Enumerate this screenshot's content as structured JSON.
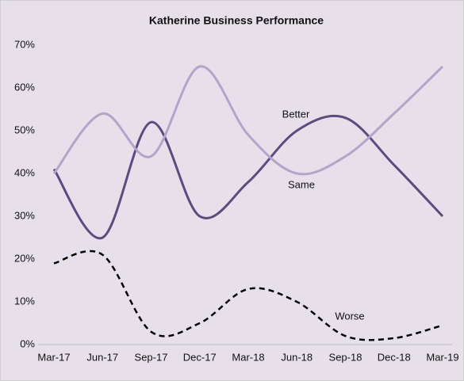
{
  "chart_data": {
    "type": "line",
    "title": "Katherine Business Performance",
    "categories": [
      "Mar-17",
      "Jun-17",
      "Sep-17",
      "Dec-17",
      "Mar-18",
      "Jun-18",
      "Sep-18",
      "Dec-18",
      "Mar-19"
    ],
    "series": [
      {
        "name": "Better",
        "color": "#5e4a7e",
        "dash": false,
        "values": [
          41,
          25,
          52,
          30,
          38,
          50,
          53,
          42,
          30
        ]
      },
      {
        "name": "Same",
        "color": "#b3a4c9",
        "dash": false,
        "values": [
          40,
          54,
          44,
          65,
          49,
          40,
          44,
          54,
          65
        ]
      },
      {
        "name": "Worse",
        "color": "#000000",
        "dash": true,
        "values": [
          19,
          21,
          3,
          5,
          13,
          10,
          2,
          1.5,
          4.5
        ]
      }
    ],
    "ylim": [
      0,
      70
    ],
    "yticks": [
      {
        "value": 0,
        "label": "0%"
      },
      {
        "value": 10,
        "label": "10%"
      },
      {
        "value": 20,
        "label": "20%"
      },
      {
        "value": 30,
        "label": "30%"
      },
      {
        "value": 40,
        "label": "40%"
      },
      {
        "value": 50,
        "label": "50%"
      },
      {
        "value": 60,
        "label": "60%"
      },
      {
        "value": 70,
        "label": "70%"
      }
    ],
    "grid": false
  }
}
